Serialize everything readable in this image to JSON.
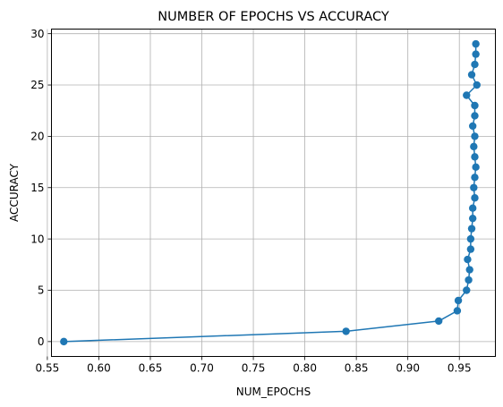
{
  "chart_data": {
    "type": "line",
    "title": "NUMBER OF EPOCHS VS ACCURACY",
    "xlabel": "NUM_EPOCHS",
    "ylabel": "ACCURACY",
    "xlim": [
      0.554,
      0.985
    ],
    "ylim": [
      -1.45,
      30.45
    ],
    "grid": true,
    "xticks": [
      0.55,
      0.6,
      0.65,
      0.7,
      0.75,
      0.8,
      0.85,
      0.9,
      0.95
    ],
    "xtick_labels": [
      "0.55",
      "0.60",
      "0.65",
      "0.70",
      "0.75",
      "0.80",
      "0.85",
      "0.90",
      "0.95"
    ],
    "yticks": [
      0,
      5,
      10,
      15,
      20,
      25,
      30
    ],
    "ytick_labels": [
      "0",
      "5",
      "10",
      "15",
      "20",
      "25",
      "30"
    ],
    "series": [
      {
        "marker": "circle",
        "color": "#1f77b4",
        "x": [
          0.566,
          0.84,
          0.93,
          0.948,
          0.949,
          0.957,
          0.959,
          0.96,
          0.958,
          0.961,
          0.961,
          0.962,
          0.963,
          0.963,
          0.965,
          0.964,
          0.965,
          0.966,
          0.965,
          0.964,
          0.965,
          0.963,
          0.965,
          0.965,
          0.957,
          0.967,
          0.962,
          0.965,
          0.966,
          0.966
        ],
        "y": [
          0,
          1,
          2,
          3,
          4,
          5,
          6,
          7,
          8,
          9,
          10,
          11,
          12,
          13,
          14,
          15,
          16,
          17,
          18,
          19,
          20,
          21,
          22,
          23,
          24,
          25,
          26,
          27,
          28,
          29
        ]
      }
    ]
  }
}
